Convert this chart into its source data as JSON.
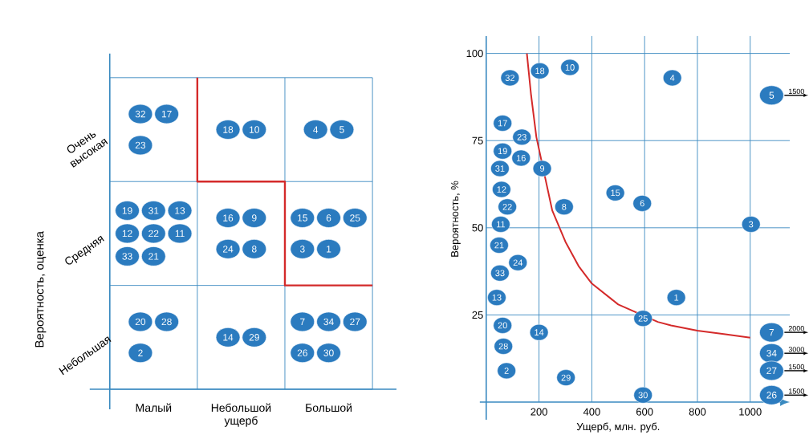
{
  "chart_data": [
    {
      "type": "other",
      "ylabel": "Вероятность, оценка",
      "categories": [
        "Малый",
        "Небольшой ущерб",
        "Большой"
      ],
      "y_categories": [
        "Очень высокая",
        "Средняя",
        "Небольшая"
      ],
      "annotations": [
        {
          "text": "32",
          "x": "Малый",
          "y": "Очень высокая"
        },
        {
          "text": "17",
          "x": "Малый",
          "y": "Очень высокая"
        },
        {
          "text": "23",
          "x": "Малый",
          "y": "Очень высокая"
        },
        {
          "text": "18",
          "x": "Небольшой ущерб",
          "y": "Очень высокая"
        },
        {
          "text": "10",
          "x": "Небольшой ущерб",
          "y": "Очень высокая"
        },
        {
          "text": "4",
          "x": "Большой",
          "y": "Очень высокая"
        },
        {
          "text": "5",
          "x": "Большой",
          "y": "Очень высокая"
        },
        {
          "text": "19",
          "x": "Малый",
          "y": "Средняя"
        },
        {
          "text": "31",
          "x": "Малый",
          "y": "Средняя"
        },
        {
          "text": "13",
          "x": "Малый",
          "y": "Средняя"
        },
        {
          "text": "12",
          "x": "Малый",
          "y": "Средняя"
        },
        {
          "text": "22",
          "x": "Малый",
          "y": "Средняя"
        },
        {
          "text": "11",
          "x": "Малый",
          "y": "Средняя"
        },
        {
          "text": "33",
          "x": "Малый",
          "y": "Средняя"
        },
        {
          "text": "21",
          "x": "Малый",
          "y": "Средняя"
        },
        {
          "text": "16",
          "x": "Небольшой ущерб",
          "y": "Средняя"
        },
        {
          "text": "9",
          "x": "Небольшой ущерб",
          "y": "Средняя"
        },
        {
          "text": "24",
          "x": "Небольшой ущерб",
          "y": "Средняя"
        },
        {
          "text": "8",
          "x": "Небольшой ущерб",
          "y": "Средняя"
        },
        {
          "text": "15",
          "x": "Большой",
          "y": "Средняя"
        },
        {
          "text": "6",
          "x": "Большой",
          "y": "Средняя"
        },
        {
          "text": "25",
          "x": "Большой",
          "y": "Средняя"
        },
        {
          "text": "3",
          "x": "Большой",
          "y": "Средняя"
        },
        {
          "text": "1",
          "x": "Большой",
          "y": "Средняя"
        },
        {
          "text": "20",
          "x": "Малый",
          "y": "Небольшая"
        },
        {
          "text": "28",
          "x": "Малый",
          "y": "Небольшая"
        },
        {
          "text": "2",
          "x": "Малый",
          "y": "Небольшая"
        },
        {
          "text": "14",
          "x": "Небольшой ущерб",
          "y": "Небольшая"
        },
        {
          "text": "29",
          "x": "Небольшой ущерб",
          "y": "Небольшая"
        },
        {
          "text": "7",
          "x": "Большой",
          "y": "Небольшая"
        },
        {
          "text": "34",
          "x": "Большой",
          "y": "Небольшая"
        },
        {
          "text": "27",
          "x": "Большой",
          "y": "Небольшая"
        },
        {
          "text": "26",
          "x": "Большой",
          "y": "Небольшая"
        },
        {
          "text": "30",
          "x": "Большой",
          "y": "Небольшая"
        }
      ]
    },
    {
      "type": "scatter",
      "xlabel": "Ущерб, млн. руб.",
      "ylabel": "Вероятность, %",
      "xlim": [
        0,
        1150
      ],
      "ylim": [
        0,
        105
      ],
      "xticks": [
        200,
        400,
        600,
        800,
        1000
      ],
      "yticks": [
        25,
        50,
        75,
        100
      ],
      "grid": true,
      "series": [
        {
          "type": "scatter",
          "marker": "circle",
          "color": "#2b7bbf",
          "x": [
            90,
            203,
            317,
            705,
            62,
            135,
            62,
            132,
            52,
            212,
            58,
            80,
            295,
            489,
            591,
            1003,
            55,
            49,
            120,
            52,
            40,
            720,
            594,
            62,
            200,
            65,
            77,
            302,
            594
          ],
          "values": [
            93,
            95,
            96,
            93,
            80,
            76,
            72,
            70,
            67,
            67,
            61,
            56,
            56,
            60,
            57,
            51,
            51,
            45,
            40,
            37,
            30,
            30,
            24,
            22,
            20,
            16,
            9,
            7,
            2
          ]
        },
        {
          "type": "line",
          "color": "#d42a2a",
          "x": [
            154,
            170,
            190,
            250,
            300,
            350,
            400,
            500,
            650,
            700,
            800,
            900,
            1000
          ],
          "values": [
            100,
            88,
            76,
            55,
            46,
            39,
            34,
            28,
            23,
            22,
            20.5,
            19.5,
            18.5
          ]
        }
      ],
      "annotations": [
        {
          "text": "32",
          "x": 90,
          "y": 93
        },
        {
          "text": "18",
          "x": 203,
          "y": 95
        },
        {
          "text": "10",
          "x": 317,
          "y": 96
        },
        {
          "text": "4",
          "x": 705,
          "y": 93
        },
        {
          "text": "17",
          "x": 62,
          "y": 80
        },
        {
          "text": "23",
          "x": 135,
          "y": 76
        },
        {
          "text": "19",
          "x": 62,
          "y": 72
        },
        {
          "text": "16",
          "x": 132,
          "y": 70
        },
        {
          "text": "31",
          "x": 52,
          "y": 67
        },
        {
          "text": "9",
          "x": 212,
          "y": 67
        },
        {
          "text": "12",
          "x": 58,
          "y": 61
        },
        {
          "text": "22",
          "x": 80,
          "y": 56
        },
        {
          "text": "8",
          "x": 295,
          "y": 56
        },
        {
          "text": "15",
          "x": 489,
          "y": 60
        },
        {
          "text": "6",
          "x": 591,
          "y": 57
        },
        {
          "text": "3",
          "x": 1003,
          "y": 51
        },
        {
          "text": "11",
          "x": 55,
          "y": 51
        },
        {
          "text": "21",
          "x": 49,
          "y": 45
        },
        {
          "text": "24",
          "x": 120,
          "y": 40
        },
        {
          "text": "33",
          "x": 52,
          "y": 37
        },
        {
          "text": "13",
          "x": 40,
          "y": 30
        },
        {
          "text": "1",
          "x": 720,
          "y": 30
        },
        {
          "text": "25",
          "x": 594,
          "y": 24
        },
        {
          "text": "20",
          "x": 62,
          "y": 22
        },
        {
          "text": "14",
          "x": 200,
          "y": 20
        },
        {
          "text": "28",
          "x": 65,
          "y": 16
        },
        {
          "text": "2",
          "x": 77,
          "y": 9
        },
        {
          "text": "29",
          "x": 302,
          "y": 7
        },
        {
          "text": "30",
          "x": 594,
          "y": 2
        },
        {
          "text": "5",
          "y": 88
        },
        "1500",
        {
          "text": "7",
          "y": 20
        },
        "2000",
        {
          "text": "34",
          "y": 14
        },
        "3000",
        {
          "text": "27",
          "y": 9
        },
        "1500",
        {
          "text": "26",
          "y": 2
        },
        "1500"
      ]
    }
  ]
}
